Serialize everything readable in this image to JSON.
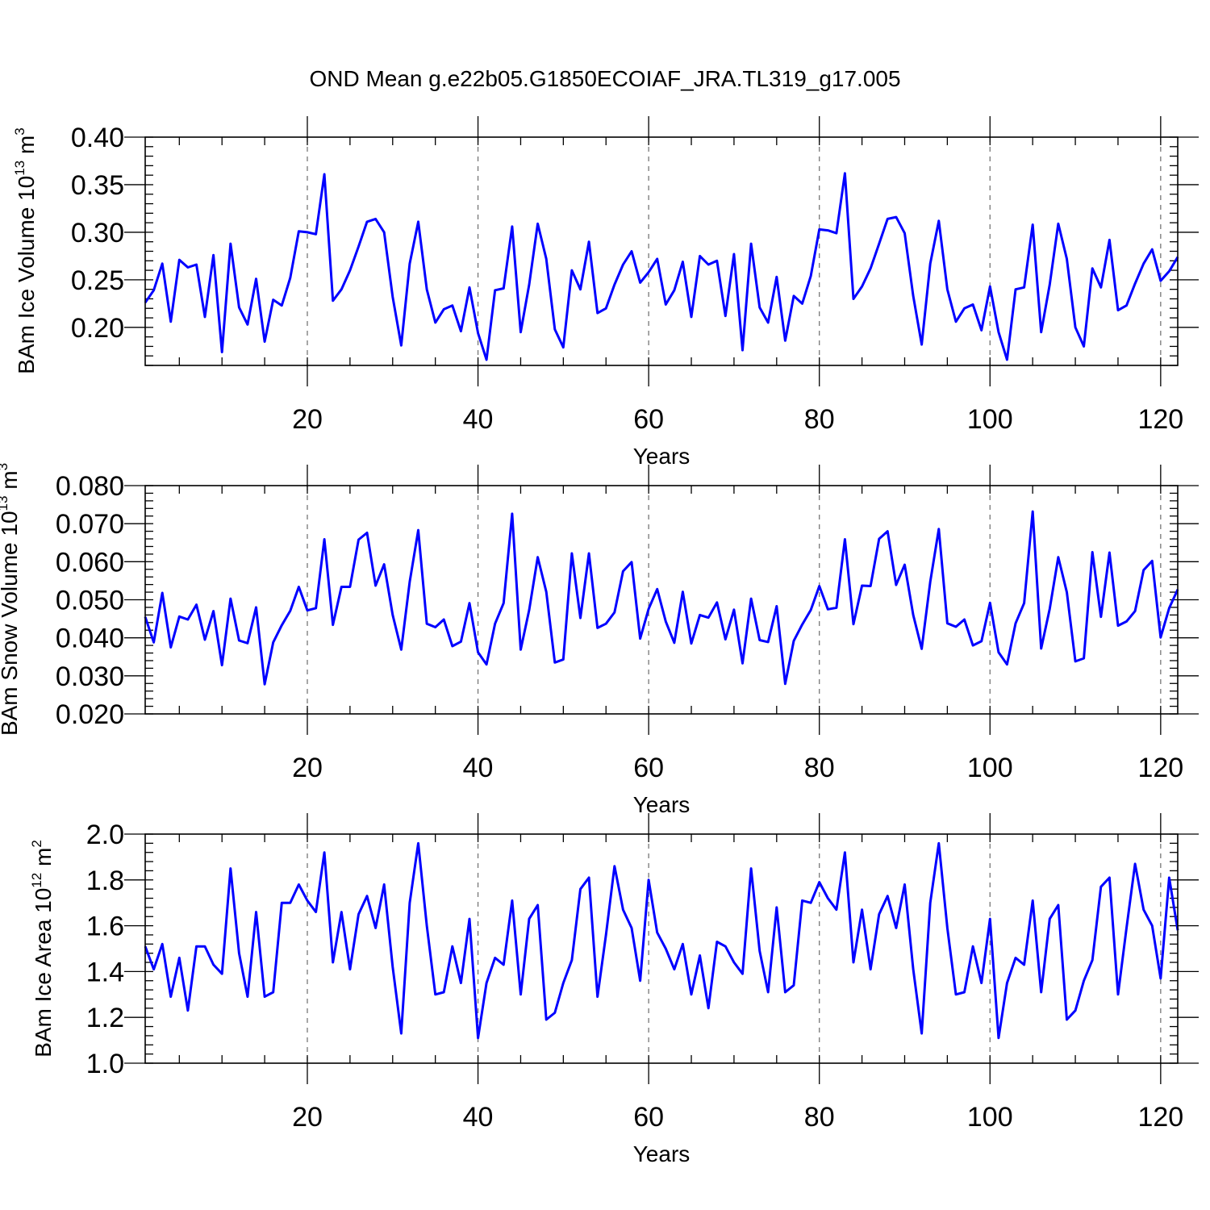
{
  "figure_title": "OND Mean g.e22b05.G1850ECOIAF_JRA.TL319_g17.005",
  "colors": {
    "line": "#0000ff",
    "grid": "#777777",
    "axis": "#000000"
  },
  "chart_data": [
    {
      "type": "line",
      "ylabel_main": "BAm Ice Volume 10",
      "ylabel_exp": "13",
      "ylabel_unit": " m",
      "ylabel_unit_exp": "3",
      "xlabel": "Years",
      "xlim": [
        1,
        122
      ],
      "ylim": [
        0.16,
        0.4
      ],
      "yticks": [
        0.2,
        0.25,
        0.3,
        0.35,
        0.4
      ],
      "ytick_labels": [
        "0.20",
        "0.25",
        "0.30",
        "0.35",
        "0.40"
      ],
      "xticks": [
        20,
        40,
        60,
        80,
        100,
        120
      ],
      "xtick_labels": [
        "20",
        "40",
        "60",
        "80",
        "100",
        "120"
      ],
      "grid_x": [
        20,
        40,
        60,
        80,
        100,
        120
      ],
      "series": [
        {
          "name": "Ice Volume",
          "x_start": 1,
          "values": [
            0.226,
            0.239,
            0.267,
            0.206,
            0.271,
            0.263,
            0.266,
            0.211,
            0.276,
            0.174,
            0.288,
            0.221,
            0.203,
            0.251,
            0.185,
            0.229,
            0.223,
            0.252,
            0.301,
            0.3,
            0.298,
            0.361,
            0.228,
            0.24,
            0.26,
            0.285,
            0.311,
            0.314,
            0.3,
            0.232,
            0.181,
            0.267,
            0.311,
            0.24,
            0.205,
            0.219,
            0.223,
            0.196,
            0.242,
            0.194,
            0.166,
            0.239,
            0.241,
            0.306,
            0.195,
            0.245,
            0.309,
            0.272,
            0.198,
            0.179,
            0.26,
            0.24,
            0.29,
            0.215,
            0.22,
            0.245,
            0.266,
            0.28,
            0.247,
            0.258,
            0.272,
            0.224,
            0.239,
            0.269,
            0.211,
            0.275,
            0.266,
            0.27,
            0.212,
            0.277,
            0.176,
            0.288,
            0.221,
            0.205,
            0.253,
            0.186,
            0.233,
            0.225,
            0.254,
            0.303,
            0.302,
            0.299,
            0.362,
            0.23,
            0.243,
            0.262,
            0.288,
            0.314,
            0.316,
            0.299,
            0.233,
            0.182,
            0.267,
            0.312,
            0.24,
            0.206,
            0.22,
            0.224,
            0.197,
            0.243,
            0.195,
            0.166,
            0.24,
            0.242,
            0.308,
            0.195,
            0.245,
            0.309,
            0.272,
            0.2,
            0.18,
            0.262,
            0.242,
            0.292,
            0.218,
            0.223,
            0.246,
            0.267,
            0.282,
            0.249,
            0.259,
            0.274
          ]
        }
      ]
    },
    {
      "type": "line",
      "ylabel_main": "BAm Snow Volume 10",
      "ylabel_exp": "13",
      "ylabel_unit": " m",
      "ylabel_unit_exp": "3",
      "xlabel": "Years",
      "xlim": [
        1,
        122
      ],
      "ylim": [
        0.02,
        0.08
      ],
      "yticks": [
        0.02,
        0.03,
        0.04,
        0.05,
        0.06,
        0.07,
        0.08
      ],
      "ytick_labels": [
        "0.020",
        "0.030",
        "0.040",
        "0.050",
        "0.060",
        "0.070",
        "0.080"
      ],
      "xticks": [
        20,
        40,
        60,
        80,
        100,
        120
      ],
      "xtick_labels": [
        "20",
        "40",
        "60",
        "80",
        "100",
        "120"
      ],
      "grid_x": [
        20,
        40,
        60,
        80,
        100,
        120
      ],
      "series": [
        {
          "name": "Snow Volume",
          "x_start": 1,
          "values": [
            0.0455,
            0.0388,
            0.0518,
            0.0375,
            0.0456,
            0.0448,
            0.0487,
            0.0395,
            0.047,
            0.0328,
            0.0503,
            0.0393,
            0.0386,
            0.048,
            0.0278,
            0.0388,
            0.0433,
            0.0471,
            0.0534,
            0.0472,
            0.0478,
            0.0659,
            0.0434,
            0.0534,
            0.0534,
            0.0658,
            0.0676,
            0.0537,
            0.0593,
            0.046,
            0.0369,
            0.0547,
            0.0683,
            0.0437,
            0.0428,
            0.0448,
            0.0378,
            0.039,
            0.0491,
            0.0362,
            0.033,
            0.0437,
            0.0491,
            0.0726,
            0.0369,
            0.0473,
            0.0612,
            0.0521,
            0.0335,
            0.0343,
            0.0622,
            0.0452,
            0.0622,
            0.0426,
            0.0437,
            0.0467,
            0.0575,
            0.0599,
            0.0398,
            0.0476,
            0.0528,
            0.0443,
            0.0387,
            0.0521,
            0.0385,
            0.046,
            0.0453,
            0.0493,
            0.0396,
            0.0474,
            0.0333,
            0.0503,
            0.0394,
            0.0389,
            0.0483,
            0.0279,
            0.0392,
            0.0435,
            0.0473,
            0.0536,
            0.0475,
            0.0479,
            0.0659,
            0.0436,
            0.0537,
            0.0536,
            0.066,
            0.068,
            0.0539,
            0.0592,
            0.046,
            0.0371,
            0.0547,
            0.0686,
            0.0438,
            0.0429,
            0.0448,
            0.038,
            0.0391,
            0.0492,
            0.0362,
            0.033,
            0.0438,
            0.0491,
            0.0732,
            0.0372,
            0.0476,
            0.0612,
            0.052,
            0.0338,
            0.0346,
            0.0625,
            0.0455,
            0.0624,
            0.0432,
            0.0443,
            0.047,
            0.0578,
            0.0602,
            0.0401,
            0.0478,
            0.0527
          ]
        }
      ]
    },
    {
      "type": "line",
      "ylabel_main": "BAm Ice Area 10",
      "ylabel_exp": "12",
      "ylabel_unit": " m",
      "ylabel_unit_exp": "2",
      "xlabel": "Years",
      "xlim": [
        1,
        122
      ],
      "ylim": [
        1.0,
        2.0
      ],
      "yticks": [
        1.0,
        1.2,
        1.4,
        1.6,
        1.8,
        2.0
      ],
      "ytick_labels": [
        "1.0",
        "1.2",
        "1.4",
        "1.6",
        "1.8",
        "2.0"
      ],
      "xticks": [
        20,
        40,
        60,
        80,
        100,
        120
      ],
      "xtick_labels": [
        "20",
        "40",
        "60",
        "80",
        "100",
        "120"
      ],
      "grid_x": [
        20,
        40,
        60,
        80,
        100,
        120
      ],
      "series": [
        {
          "name": "Ice Area",
          "x_start": 1,
          "values": [
            1.51,
            1.41,
            1.52,
            1.29,
            1.46,
            1.23,
            1.51,
            1.51,
            1.43,
            1.39,
            1.85,
            1.48,
            1.29,
            1.66,
            1.29,
            1.31,
            1.7,
            1.7,
            1.78,
            1.71,
            1.66,
            1.92,
            1.44,
            1.66,
            1.41,
            1.65,
            1.73,
            1.59,
            1.78,
            1.42,
            1.13,
            1.7,
            1.96,
            1.6,
            1.3,
            1.31,
            1.51,
            1.35,
            1.63,
            1.11,
            1.35,
            1.46,
            1.43,
            1.71,
            1.3,
            1.63,
            1.69,
            1.19,
            1.22,
            1.35,
            1.45,
            1.76,
            1.81,
            1.29,
            1.56,
            1.86,
            1.67,
            1.59,
            1.36,
            1.8,
            1.57,
            1.5,
            1.41,
            1.52,
            1.3,
            1.47,
            1.24,
            1.53,
            1.51,
            1.44,
            1.39,
            1.85,
            1.49,
            1.31,
            1.68,
            1.31,
            1.34,
            1.71,
            1.7,
            1.79,
            1.72,
            1.67,
            1.92,
            1.44,
            1.67,
            1.41,
            1.65,
            1.73,
            1.59,
            1.78,
            1.41,
            1.13,
            1.7,
            1.96,
            1.59,
            1.3,
            1.31,
            1.51,
            1.35,
            1.63,
            1.11,
            1.35,
            1.46,
            1.43,
            1.71,
            1.31,
            1.63,
            1.69,
            1.19,
            1.23,
            1.36,
            1.45,
            1.77,
            1.81,
            1.3,
            1.59,
            1.87,
            1.67,
            1.6,
            1.37,
            1.81,
            1.58
          ]
        }
      ]
    }
  ]
}
